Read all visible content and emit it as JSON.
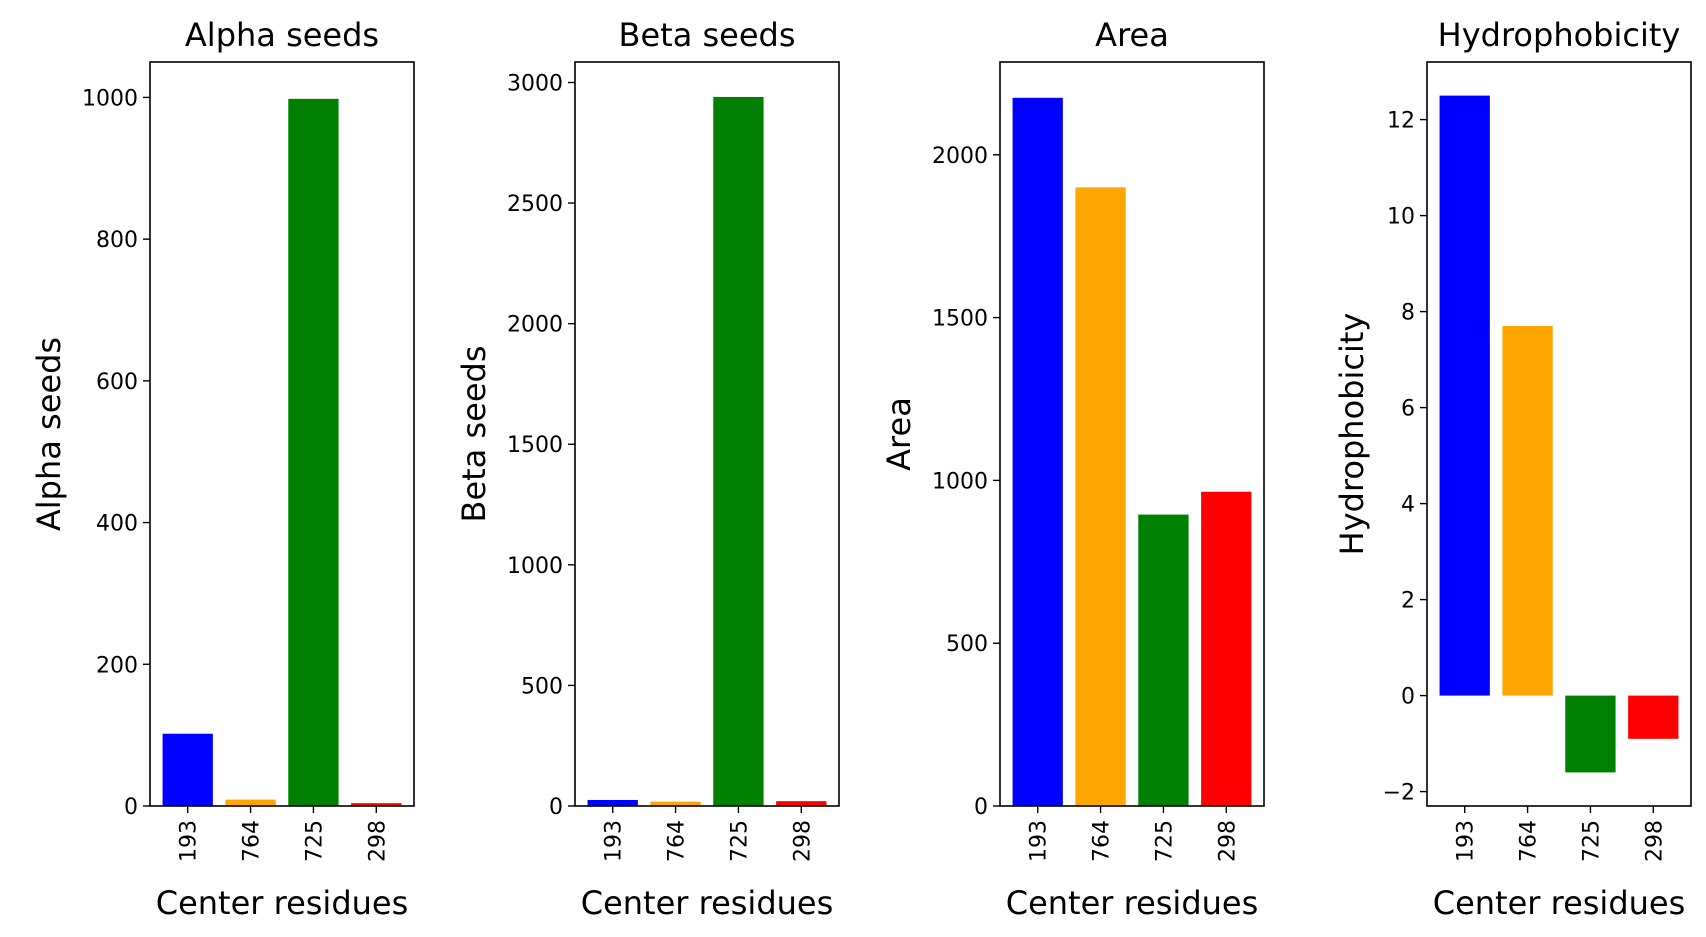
{
  "chart_data": [
    {
      "type": "bar",
      "title": "Alpha seeds",
      "xlabel": "Center residues",
      "ylabel": "Alpha seeds",
      "categories": [
        "193",
        "764",
        "725",
        "298"
      ],
      "values": [
        102,
        9,
        998,
        4
      ],
      "colors": [
        "#0000ff",
        "#ffa500",
        "#008000",
        "#ff0000"
      ],
      "ylim": [
        0,
        1050
      ],
      "yticks": [
        0,
        200,
        400,
        600,
        800,
        1000
      ],
      "grid": false
    },
    {
      "type": "bar",
      "title": "Beta seeds",
      "xlabel": "Center residues",
      "ylabel": "Beta seeds",
      "categories": [
        "193",
        "764",
        "725",
        "298"
      ],
      "values": [
        25,
        18,
        2940,
        20
      ],
      "colors": [
        "#0000ff",
        "#ffa500",
        "#008000",
        "#ff0000"
      ],
      "ylim": [
        0,
        3085
      ],
      "yticks": [
        0,
        500,
        1000,
        1500,
        2000,
        2500,
        3000
      ],
      "grid": false
    },
    {
      "type": "bar",
      "title": "Area",
      "xlabel": "Center residues",
      "ylabel": "Area",
      "categories": [
        "193",
        "764",
        "725",
        "298"
      ],
      "values": [
        2175,
        1900,
        895,
        965
      ],
      "colors": [
        "#0000ff",
        "#ffa500",
        "#008000",
        "#ff0000"
      ],
      "ylim": [
        0,
        2285
      ],
      "yticks": [
        0,
        500,
        1000,
        1500,
        2000
      ],
      "grid": false
    },
    {
      "type": "bar",
      "title": "Hydrophobicity",
      "xlabel": "Center residues",
      "ylabel": "Hydrophobicity",
      "categories": [
        "193",
        "764",
        "725",
        "298"
      ],
      "values": [
        12.5,
        7.7,
        -1.6,
        -0.9
      ],
      "colors": [
        "#0000ff",
        "#ffa500",
        "#008000",
        "#ff0000"
      ],
      "ylim": [
        -2.3,
        13.2
      ],
      "yticks": [
        -2,
        0,
        2,
        4,
        6,
        8,
        10,
        12
      ],
      "grid": false
    }
  ]
}
